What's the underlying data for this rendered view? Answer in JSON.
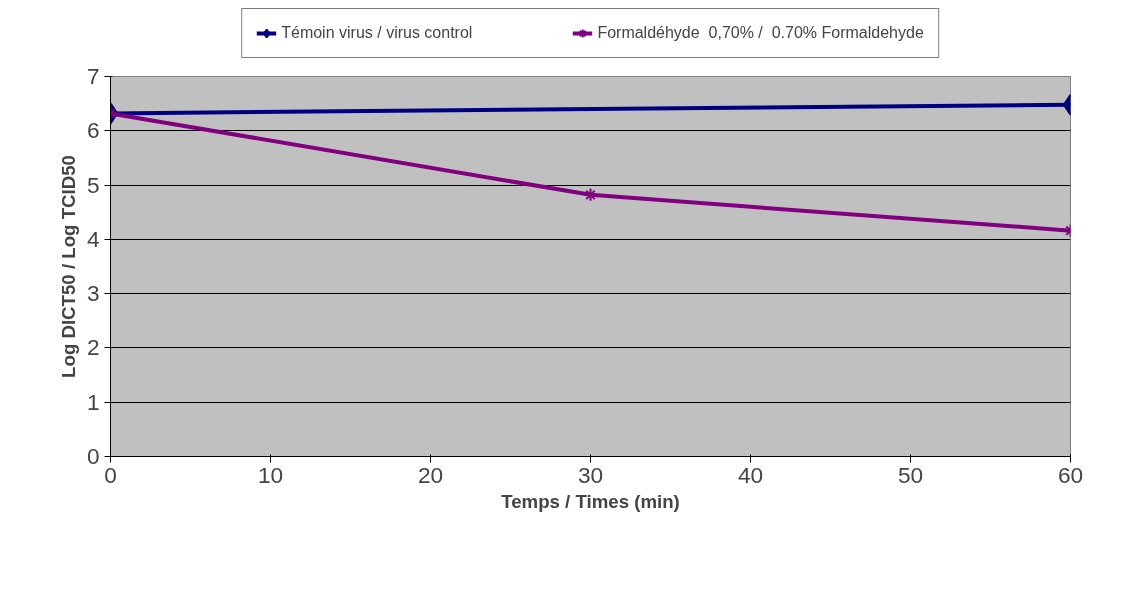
{
  "chart_data": {
    "type": "line",
    "xlabel": "Temps / Times (min)",
    "ylabel": "Log DICT50 / Log TCID50",
    "x": [
      0,
      30,
      60
    ],
    "series": [
      {
        "name": "Témoin virus / virus control",
        "color": "#000080",
        "marker": "diamond",
        "values": [
          6.32,
          null,
          6.48
        ]
      },
      {
        "name": "Formaldéhyde  0,70% /  0.70% Formaldehyde",
        "color": "#800080",
        "marker": "cross",
        "values": [
          6.32,
          4.82,
          4.16
        ]
      }
    ],
    "xlim": [
      0,
      60
    ],
    "xticks": [
      0,
      10,
      20,
      30,
      40,
      50,
      60
    ],
    "ylim": [
      0,
      7
    ],
    "yticks": [
      0,
      1,
      2,
      3,
      4,
      5,
      6,
      7
    ],
    "grid": "y",
    "legend": "top",
    "line_style": "solid"
  }
}
